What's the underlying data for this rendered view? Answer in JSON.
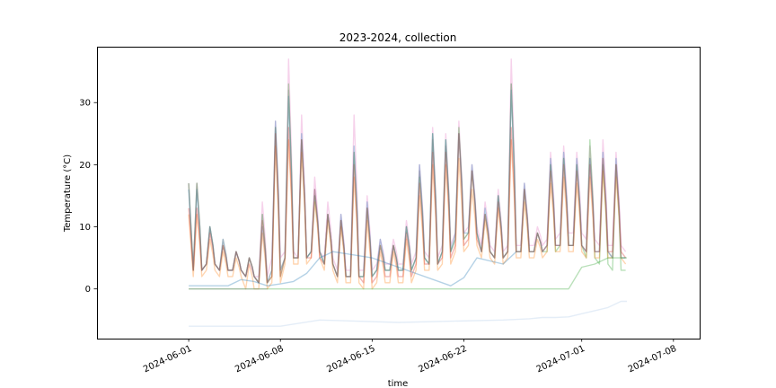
{
  "chart_data": {
    "type": "line",
    "title": "2023-2024, collection",
    "xlabel": "time",
    "ylabel": "Temperature (°C)",
    "x_range": [
      "2024-05-25",
      "2024-07-10"
    ],
    "ylim": [
      -8,
      39
    ],
    "x_ticks": [
      "2024-06-01",
      "2024-06-08",
      "2024-06-15",
      "2024-06-22",
      "2024-07-01",
      "2024-07-08"
    ],
    "y_ticks": [
      0,
      10,
      20,
      30
    ],
    "grid": false,
    "legend": "none",
    "daily_peak_dates": [
      "2024-06-01",
      "2024-06-02",
      "2024-06-03",
      "2024-06-04",
      "2024-06-05",
      "2024-06-06",
      "2024-06-07",
      "2024-06-08",
      "2024-06-09",
      "2024-06-10",
      "2024-06-11",
      "2024-06-12",
      "2024-06-13",
      "2024-06-14",
      "2024-06-15",
      "2024-06-16",
      "2024-06-17",
      "2024-06-18",
      "2024-06-19",
      "2024-06-20",
      "2024-06-21",
      "2024-06-22",
      "2024-06-23",
      "2024-06-24",
      "2024-06-25",
      "2024-06-26",
      "2024-06-27",
      "2024-06-28",
      "2024-06-29",
      "2024-06-30",
      "2024-07-01",
      "2024-07-02",
      "2024-07-03",
      "2024-07-04"
    ],
    "series": [
      {
        "color": "#e377c2",
        "peaks": [
          17,
          10,
          7,
          6,
          4,
          14,
          27,
          37,
          28,
          18,
          14,
          12,
          28,
          15,
          8,
          8,
          11,
          20,
          26,
          25,
          27,
          20,
          14,
          16,
          37,
          17,
          10,
          22,
          23,
          22,
          23,
          24,
          22,
          17
        ],
        "troughs": [
          3,
          4,
          3,
          3,
          2,
          2,
          5,
          6,
          5,
          6,
          5,
          3,
          3,
          3,
          4,
          4,
          4,
          6,
          5,
          7,
          9,
          10,
          7,
          6,
          7,
          7,
          7,
          8,
          9,
          9,
          8,
          7,
          7,
          6
        ]
      },
      {
        "color": "#2ca02c",
        "peaks": [
          17,
          10,
          7,
          6,
          5,
          12,
          26,
          33,
          24,
          15,
          12,
          11,
          22,
          13,
          7,
          7,
          10,
          18,
          25,
          24,
          26,
          19,
          12,
          15,
          33,
          16,
          9,
          20,
          21,
          20,
          24,
          20,
          20,
          15
        ],
        "troughs": [
          3,
          4,
          3,
          3,
          2,
          1,
          2,
          5,
          5,
          6,
          4,
          2,
          2,
          2,
          3,
          3,
          3,
          5,
          4,
          6,
          8,
          9,
          6,
          5,
          6,
          6,
          6,
          6,
          7,
          7,
          5,
          4,
          3,
          3
        ]
      },
      {
        "color": "#1f77b4",
        "peaks": [
          16,
          10,
          8,
          6,
          5,
          10,
          27,
          31,
          25,
          16,
          12,
          12,
          23,
          14,
          8,
          7,
          10,
          20,
          25,
          24,
          25,
          20,
          13,
          15,
          32,
          17,
          9,
          21,
          22,
          21,
          21,
          22,
          21,
          16
        ],
        "troughs": [
          3,
          4,
          3,
          3,
          2,
          1,
          3,
          5,
          5,
          6,
          4,
          2,
          2,
          2,
          3,
          3,
          3,
          5,
          4,
          6,
          9,
          9,
          6,
          5,
          6,
          6,
          6,
          7,
          7,
          7,
          6,
          6,
          5,
          5
        ]
      },
      {
        "color": "#ff7f0e",
        "peaks": [
          12,
          8,
          6,
          5,
          4,
          9,
          23,
          24,
          22,
          14,
          11,
          10,
          18,
          11,
          6,
          6,
          8,
          15,
          20,
          20,
          21,
          16,
          11,
          13,
          24,
          14,
          8,
          17,
          18,
          17,
          18,
          19,
          18,
          14
        ],
        "troughs": [
          2,
          3,
          2,
          2,
          0,
          0,
          1,
          4,
          4,
          5,
          3,
          1,
          1,
          0,
          1,
          1,
          1,
          3,
          3,
          4,
          6,
          7,
          5,
          4,
          5,
          5,
          5,
          6,
          6,
          6,
          5,
          5,
          5,
          4
        ]
      },
      {
        "color": "#d62728",
        "peaks": [
          13,
          9,
          7,
          6,
          5,
          11,
          25,
          26,
          24,
          16,
          12,
          11,
          20,
          13,
          7,
          7,
          9,
          17,
          22,
          22,
          25,
          19,
          12,
          14,
          26,
          16,
          9,
          19,
          20,
          19,
          20,
          21,
          20,
          15
        ],
        "troughs": [
          3,
          4,
          3,
          3,
          2,
          1,
          2,
          5,
          5,
          5,
          4,
          2,
          2,
          1,
          2,
          2,
          2,
          4,
          4,
          5,
          7,
          8,
          6,
          5,
          6,
          6,
          6,
          7,
          7,
          7,
          6,
          6,
          6,
          5
        ]
      },
      {
        "color": "#7f7f7f",
        "peaks": [
          17,
          10,
          8,
          6,
          5,
          12,
          26,
          32,
          24,
          15,
          12,
          11,
          22,
          13,
          7,
          7,
          10,
          19,
          24,
          23,
          25,
          19,
          12,
          15,
          33,
          16,
          9,
          20,
          21,
          20,
          21,
          21,
          20,
          15
        ],
        "troughs": [
          3,
          4,
          3,
          3,
          2,
          1,
          3,
          5,
          5,
          6,
          4,
          2,
          2,
          2,
          3,
          3,
          3,
          5,
          4,
          6,
          8,
          9,
          6,
          5,
          6,
          6,
          6,
          7,
          7,
          7,
          6,
          6,
          5,
          5
        ]
      },
      {
        "color": "#1f77b4",
        "date_x": [
          "2024-06-01",
          "2024-06-04",
          "2024-06-05",
          "2024-06-06",
          "2024-06-07",
          "2024-06-08",
          "2024-06-09",
          "2024-06-10",
          "2024-06-11",
          "2024-06-12",
          "2024-06-15",
          "2024-06-21",
          "2024-06-22",
          "2024-06-23",
          "2024-06-25",
          "2024-06-26"
        ],
        "values": [
          0.5,
          0.5,
          1.5,
          1.2,
          0.5,
          0.8,
          1.2,
          2.5,
          5,
          6,
          5,
          0.5,
          1.8,
          5,
          4,
          6
        ]
      },
      {
        "color": "#2ca02c",
        "date_x": [
          "2024-06-01",
          "2024-06-29",
          "2024-06-30",
          "2024-07-01",
          "2024-07-02",
          "2024-07-03",
          "2024-07-04"
        ],
        "values": [
          0,
          0,
          0,
          3.5,
          4,
          5,
          5
        ]
      },
      {
        "color": "#7f7f7f",
        "date_x": [
          "2024-06-01",
          "2024-06-07"
        ],
        "values": [
          0,
          0
        ]
      },
      {
        "color": "#aec7e8",
        "date_x": [
          "2024-06-01",
          "2024-06-08",
          "2024-06-11",
          "2024-06-17",
          "2024-06-25",
          "2024-06-27",
          "2024-06-28",
          "2024-06-29",
          "2024-06-30",
          "2024-07-01",
          "2024-07-02",
          "2024-07-03",
          "2024-07-04"
        ],
        "values": [
          -6,
          -6,
          -5,
          -5.4,
          -5,
          -4.8,
          -4.6,
          -4.6,
          -4.5,
          -4,
          -3.5,
          -3,
          -2
        ]
      }
    ]
  }
}
